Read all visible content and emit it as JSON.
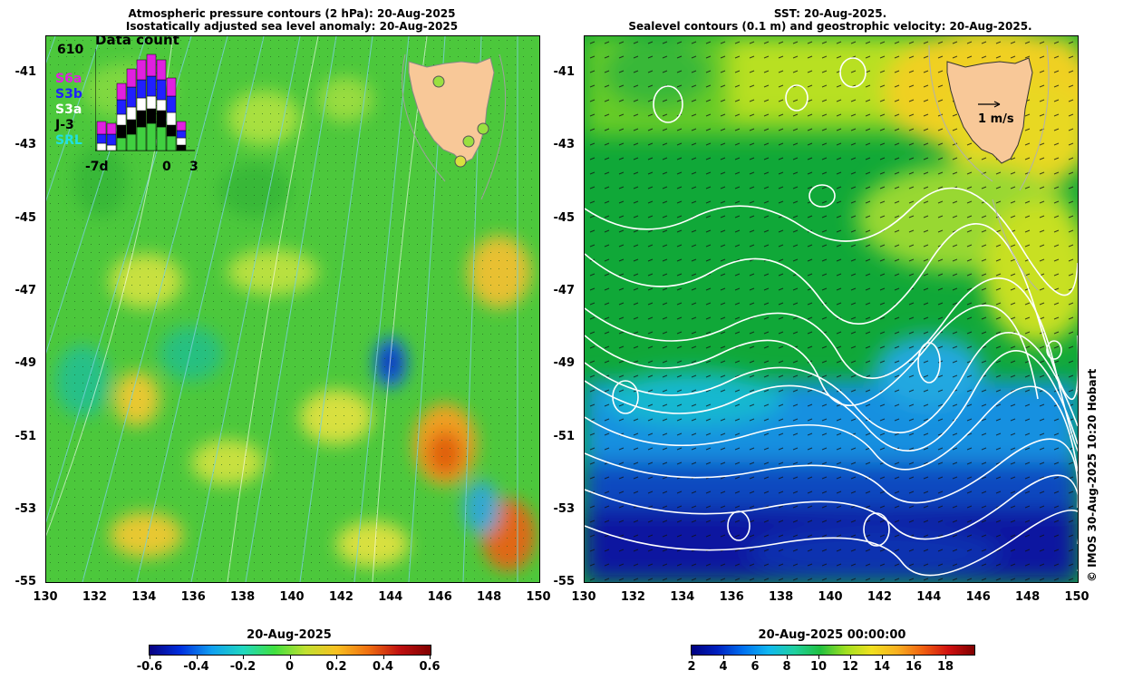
{
  "left_panel": {
    "title_line1": "Atmospheric pressure contours (2 hPa): 20-Aug-2025",
    "title_line2": "Isostatically adjusted sea level anomaly: 20-Aug-2025",
    "data_count": {
      "title": "Data count",
      "max_value": "610",
      "legend": [
        {
          "label": "S6a",
          "color": "#e020e0"
        },
        {
          "label": "S3b",
          "color": "#2020ff"
        },
        {
          "label": "S3a",
          "color": "#ffffff"
        },
        {
          "label": "J-3",
          "color": "#000000"
        },
        {
          "label": "SRL",
          "color": "#20e0e0"
        }
      ],
      "x_labels": [
        "-7d",
        "0",
        "3"
      ]
    },
    "colorbar": {
      "label": "20-Aug-2025",
      "ticks": [
        "-0.6",
        "-0.4",
        "-0.2",
        "0",
        "0.2",
        "0.4",
        "0.6"
      ]
    }
  },
  "right_panel": {
    "title_line1": "SST: 20-Aug-2025.",
    "title_line2": "Sealevel contours (0.1 m) and geostrophic velocity: 20-Aug-2025.",
    "velocity_scale_label": "1 m/s",
    "colorbar": {
      "label": "20-Aug-2025 00:00:00",
      "ticks": [
        "2",
        "4",
        "6",
        "8",
        "10",
        "12",
        "14",
        "16",
        "18"
      ]
    }
  },
  "axes": {
    "y_ticks": [
      "-41",
      "-43",
      "-45",
      "-47",
      "-49",
      "-51",
      "-53",
      "-55"
    ],
    "x_ticks": [
      "130",
      "132",
      "134",
      "136",
      "138",
      "140",
      "142",
      "144",
      "146",
      "148",
      "150"
    ]
  },
  "copyright": "© IMOS 30-Aug-2025 10:20 Hobart",
  "colors": {
    "land": "#f8c898",
    "left_base": "#4cc83c",
    "right_base": "#10a838"
  }
}
